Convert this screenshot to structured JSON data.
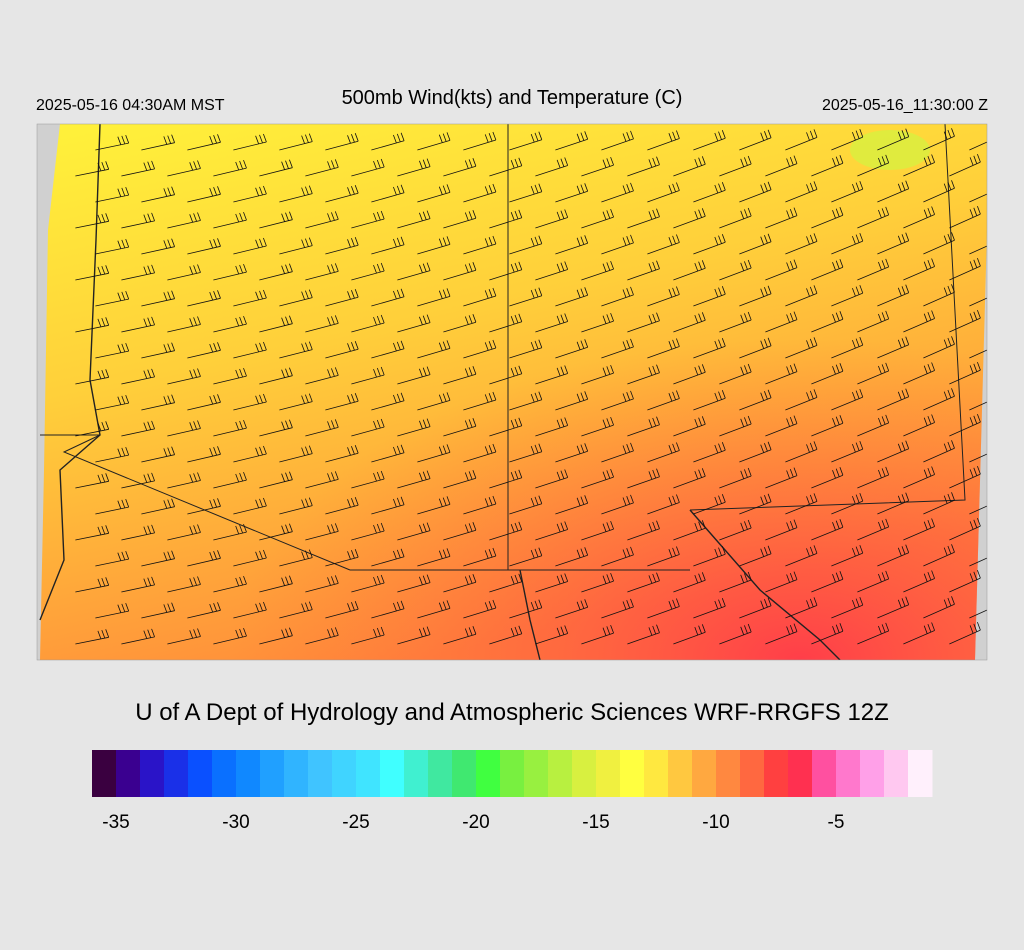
{
  "header": {
    "local_time": "2025-05-16 04:30AM MST",
    "title": "500mb Wind(kts) and Temperature (C)",
    "valid_time": "2025-05-16_11:30:00 Z"
  },
  "credit": "U of A Dept of Hydrology and Atmospheric Sciences WRF-RRGFS 12Z",
  "colorbar": {
    "lim": [
      -36,
      -1
    ],
    "ticks": [
      -35,
      -30,
      -25,
      -20,
      -15,
      -10,
      -5
    ],
    "colors": [
      "#3a0040",
      "#3a0090",
      "#2a14c8",
      "#1a30e8",
      "#0a50ff",
      "#0a70ff",
      "#1088ff",
      "#20a0ff",
      "#30b4ff",
      "#40c4ff",
      "#40d4ff",
      "#40e4ff",
      "#40ffff",
      "#40f0d0",
      "#40e8a0",
      "#40e870",
      "#40ff40",
      "#78f040",
      "#98f040",
      "#b8f040",
      "#d8f040",
      "#f0f040",
      "#ffff40",
      "#ffe840",
      "#ffc840",
      "#ffa840",
      "#ff8840",
      "#ff6840",
      "#ff4040",
      "#ff3050",
      "#ff50a0",
      "#ff78cc",
      "#ffa0e8",
      "#ffc8f0",
      "#fff0fc"
    ]
  }
}
